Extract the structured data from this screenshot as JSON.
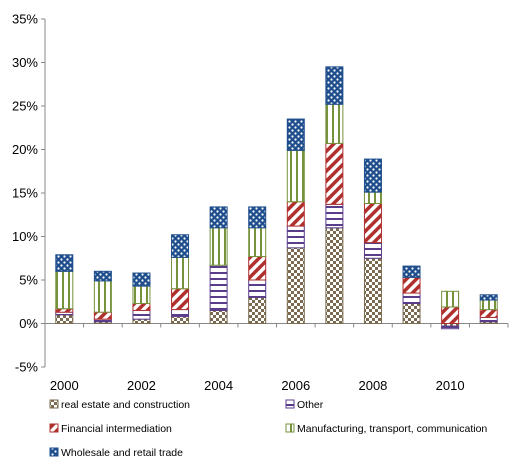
{
  "chart_data": {
    "type": "bar",
    "stacked": true,
    "categories": [
      "2000",
      "2001",
      "2002",
      "2003",
      "2004",
      "2005",
      "2006",
      "2007",
      "2008",
      "2009",
      "2010",
      "2011"
    ],
    "x_tick_labels": [
      "2000",
      "2002",
      "2004",
      "2006",
      "2008",
      "2010"
    ],
    "ylim": [
      -5,
      35
    ],
    "y_ticks": [
      -5,
      0,
      5,
      10,
      15,
      20,
      25,
      30,
      35
    ],
    "y_tick_labels": [
      "-5%",
      "0%",
      "5%",
      "10%",
      "15%",
      "20%",
      "25%",
      "30%",
      "35%"
    ],
    "grid": false,
    "legend_position": "bottom",
    "series": [
      {
        "name": "real estate and construction",
        "color": "#7a6a4f",
        "pattern": "checker",
        "values": [
          1.0,
          0.2,
          0.5,
          0.8,
          1.5,
          3.0,
          8.7,
          11.0,
          7.5,
          2.3,
          -0.3,
          0.2
        ]
      },
      {
        "name": "Other",
        "color": "#5a3d8a",
        "pattern": "hlines",
        "values": [
          0.3,
          0.3,
          1.0,
          0.8,
          5.2,
          2.0,
          2.5,
          2.7,
          1.8,
          1.2,
          -0.3,
          0.5
        ]
      },
      {
        "name": "Financial intermediation",
        "color": "#b0302e",
        "pattern": "diagonal",
        "values": [
          0.4,
          0.8,
          0.8,
          2.4,
          0.0,
          2.7,
          2.8,
          7.0,
          4.5,
          1.8,
          1.9,
          0.9
        ]
      },
      {
        "name": "Manufacturing, transport, communication",
        "color": "#76923c",
        "pattern": "vlines",
        "values": [
          4.3,
          3.6,
          2.0,
          3.6,
          4.3,
          3.3,
          5.9,
          4.5,
          1.3,
          0.0,
          1.8,
          1.1
        ]
      },
      {
        "name": "Wholesale and retail trade",
        "color": "#1f4e8c",
        "pattern": "dots",
        "values": [
          1.9,
          1.1,
          1.5,
          2.6,
          2.4,
          2.4,
          3.6,
          4.3,
          3.8,
          1.3,
          0.0,
          0.6
        ]
      }
    ]
  }
}
